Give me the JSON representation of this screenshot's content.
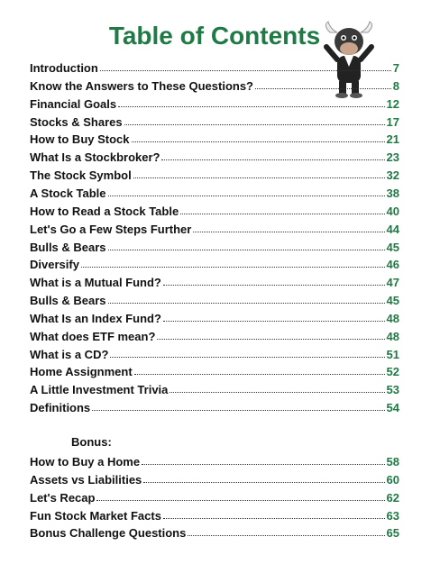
{
  "title": "Table of Contents",
  "entries": [
    {
      "label": "Introduction",
      "page": 7
    },
    {
      "label": "Know the Answers to These Questions?",
      "page": 8
    },
    {
      "label": "Financial Goals",
      "page": 12
    },
    {
      "label": "Stocks & Shares",
      "page": 17
    },
    {
      "label": "How to Buy Stock",
      "page": 21
    },
    {
      "label": "What Is a Stockbroker?",
      "page": 23
    },
    {
      "label": "The Stock Symbol",
      "page": 32
    },
    {
      "label": "A Stock Table",
      "page": 38
    },
    {
      "label": "How to Read a Stock Table",
      "page": 40
    },
    {
      "label": "Let's Go a Few Steps Further",
      "page": 44
    },
    {
      "label": "Bulls & Bears",
      "page": 45
    },
    {
      "label": "Diversify",
      "page": 46
    },
    {
      "label": "What is a Mutual Fund?",
      "page": 47
    },
    {
      "label": "Bulls & Bears",
      "page": 45
    },
    {
      "label": "What Is an Index Fund?",
      "page": 48
    },
    {
      "label": "What does ETF mean?",
      "page": 48
    },
    {
      "label": "What is a CD?",
      "page": 51
    },
    {
      "label": "Home Assignment",
      "page": 52
    },
    {
      "label": "A Little Investment Trivia",
      "page": 53
    },
    {
      "label": "Definitions",
      "page": 54
    }
  ],
  "bonus": {
    "heading": "Bonus:",
    "entries": [
      {
        "label": "How to Buy a Home",
        "page": 58
      },
      {
        "label": "Assets vs Liabilities",
        "page": 60
      },
      {
        "label": "Let's Recap",
        "page": 62
      },
      {
        "label": "Fun Stock Market Facts",
        "page": 63
      },
      {
        "label": "Bonus Challenge Questions",
        "page": 65
      }
    ]
  }
}
